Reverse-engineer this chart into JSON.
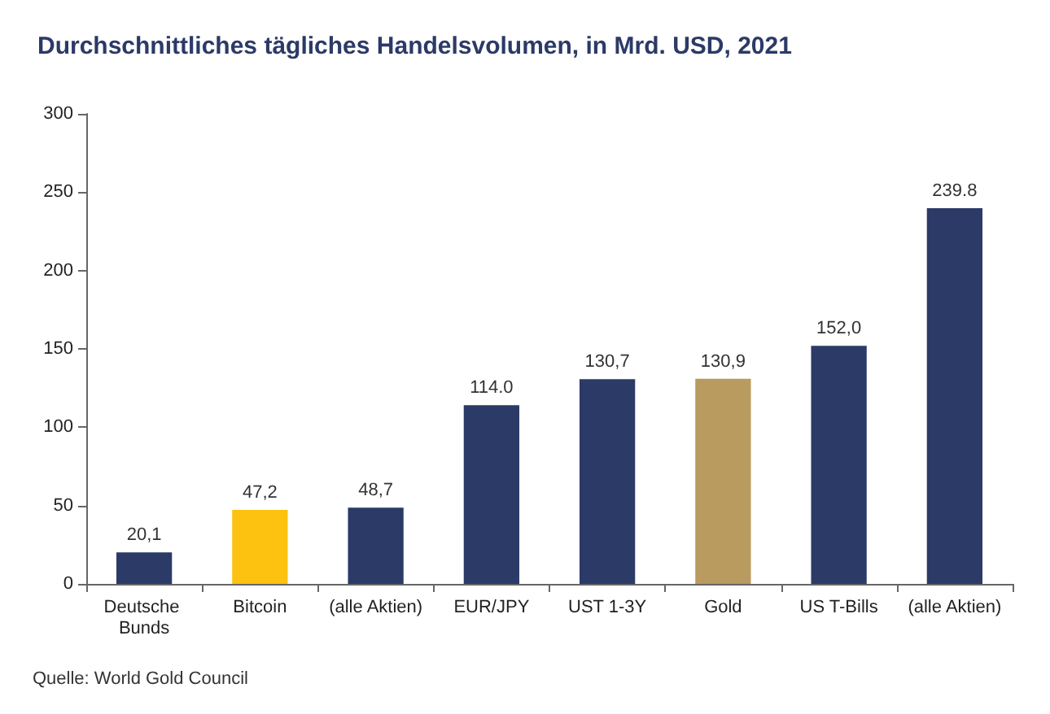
{
  "chart_data": {
    "type": "bar",
    "title": "Durchschnittliches tägliches Handelsvolumen, in Mrd. USD, 2021",
    "categories": [
      "Deutsche Bunds",
      "Bitcoin",
      "(alle Aktien)",
      "EUR/JPY",
      "UST 1-3Y",
      "Gold",
      "US T-Bills",
      "(alle Aktien)"
    ],
    "values": [
      20.1,
      47.2,
      48.7,
      114.0,
      130.7,
      130.9,
      152.0,
      239.8
    ],
    "colors": [
      "#2b3a67",
      "#fdc20f",
      "#2b3a67",
      "#2b3a67",
      "#2b3a67",
      "#b99a5f",
      "#2b3a67",
      "#2b3a67"
    ],
    "value_labels": [
      "20,1",
      "47,2",
      "48,7",
      "114.0",
      "130,7",
      "130,9",
      "152,0",
      "239.8"
    ],
    "ylim": [
      0,
      300
    ],
    "yticks": [
      0,
      50,
      100,
      150,
      200,
      250,
      300
    ],
    "grid": false,
    "annotations": [
      "Quelle: World Gold Council"
    ]
  }
}
